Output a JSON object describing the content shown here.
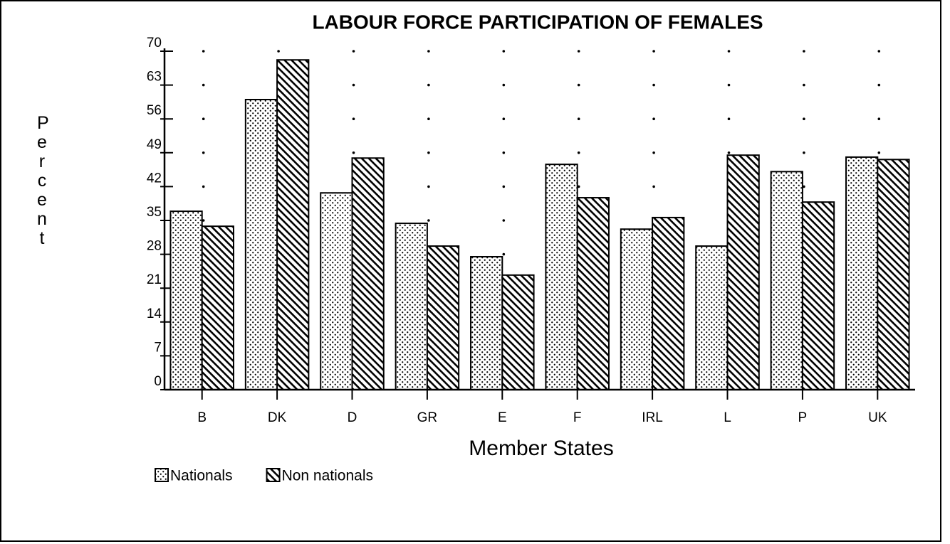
{
  "chart_data": {
    "type": "bar",
    "title": "LABOUR FORCE PARTICIPATION OF FEMALES",
    "y_label": "Percent",
    "x_label": "Member States",
    "categories": [
      "B",
      "DK",
      "D",
      "GR",
      "E",
      "F",
      "IRL",
      "L",
      "P",
      "UK"
    ],
    "series": [
      {
        "name": "Nationals",
        "color": "#000000",
        "pattern": "dots",
        "values": [
          36.9,
          60.0,
          40.7,
          34.4,
          27.5,
          46.6,
          33.2,
          29.7,
          45.1,
          48.1
        ]
      },
      {
        "name": "Non nationals",
        "color": "#000000",
        "pattern": "hatch",
        "values": [
          33.8,
          68.2,
          47.9,
          29.7,
          23.7,
          39.7,
          35.6,
          48.5,
          38.8,
          47.6
        ]
      }
    ],
    "ylim": [
      0,
      70
    ],
    "yticks": [
      0,
      7,
      14,
      21,
      28,
      35,
      42,
      49,
      56,
      63,
      70
    ],
    "grid": "dotted",
    "legend": "bottom-left"
  }
}
